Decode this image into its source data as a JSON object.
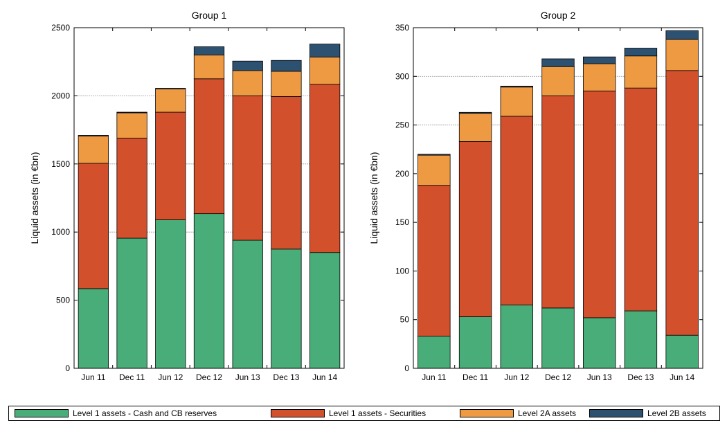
{
  "colors": {
    "cash": "#48ad78",
    "securities": "#d3502d",
    "level2a": "#ee9a43",
    "level2b": "#2d5171",
    "gridline": "#999999"
  },
  "legend": [
    {
      "key": "cash",
      "label": "Level 1 assets - Cash and CB reserves"
    },
    {
      "key": "securities",
      "label": "Level 1 assets - Securities"
    },
    {
      "key": "level2a",
      "label": "Level 2A assets"
    },
    {
      "key": "level2b",
      "label": "Level 2B assets"
    }
  ],
  "chart_data": [
    {
      "type": "bar",
      "stacked": true,
      "title": "Group 1",
      "ylabel": "Liquid assets (in €bn)",
      "xlabel": "",
      "ylim": [
        0,
        2500
      ],
      "yticks": [
        0,
        500,
        1000,
        1500,
        2000,
        2500
      ],
      "gridlines": [
        1000,
        1500,
        2000
      ],
      "categories": [
        "Jun 11",
        "Dec 11",
        "Jun 12",
        "Dec 12",
        "Jun 13",
        "Dec 13",
        "Jun 14"
      ],
      "series": [
        {
          "name": "Level 1 assets - Cash and CB reserves",
          "key": "cash",
          "values": [
            585,
            955,
            1090,
            1135,
            940,
            875,
            850
          ]
        },
        {
          "name": "Level 1 assets - Securities",
          "key": "securities",
          "values": [
            920,
            735,
            790,
            990,
            1060,
            1120,
            1235
          ]
        },
        {
          "name": "Level 2A assets",
          "key": "level2a",
          "values": [
            200,
            185,
            170,
            175,
            185,
            185,
            200
          ]
        },
        {
          "name": "Level 2B assets",
          "key": "level2b",
          "values": [
            5,
            5,
            5,
            60,
            70,
            80,
            95
          ]
        }
      ]
    },
    {
      "type": "bar",
      "stacked": true,
      "title": "Group 2",
      "ylabel": "Liquid assets (in €bn)",
      "xlabel": "",
      "ylim": [
        0,
        350
      ],
      "yticks": [
        0,
        50,
        100,
        150,
        200,
        250,
        300,
        350
      ],
      "gridlines": [
        250,
        300
      ],
      "categories": [
        "Jun 11",
        "Dec 11",
        "Jun 12",
        "Dec 12",
        "Jun 13",
        "Dec 13",
        "Jun 14"
      ],
      "series": [
        {
          "name": "Level 1 assets - Cash and CB reserves",
          "key": "cash",
          "values": [
            33,
            53,
            65,
            62,
            52,
            59,
            34
          ]
        },
        {
          "name": "Level 1 assets - Securities",
          "key": "securities",
          "values": [
            155,
            180,
            194,
            218,
            233,
            229,
            272
          ]
        },
        {
          "name": "Level 2A assets",
          "key": "level2a",
          "values": [
            31,
            29,
            30,
            30,
            28,
            33,
            32
          ]
        },
        {
          "name": "Level 2B assets",
          "key": "level2b",
          "values": [
            1,
            1,
            1,
            8,
            7,
            8,
            9
          ]
        }
      ]
    }
  ]
}
